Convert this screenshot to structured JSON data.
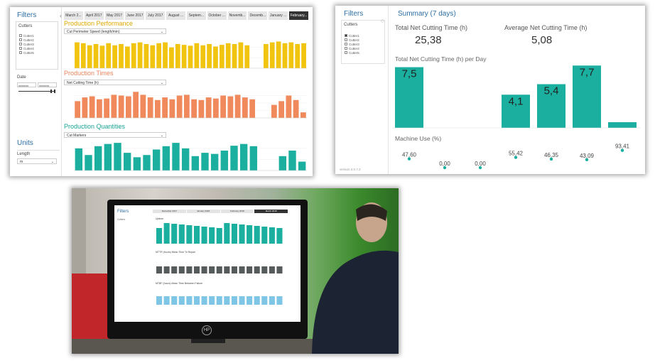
{
  "p1": {
    "sidebar": {
      "title": "Filters",
      "cutters_label": "Cutters",
      "cutters": [
        "Cutter1",
        "Cutter2",
        "Cutter3",
        "Cutter4",
        "Cutter5"
      ],
      "date_label": "Date",
      "date_from": "xx/xx/xx",
      "date_to": "xx/xx/xx",
      "units_title": "Units",
      "length_label": "Length",
      "length_value": "m"
    },
    "tabs": [
      "March 2...",
      "April 2017",
      "May 2017",
      "June 2017",
      "July 2017",
      "August ...",
      "Septem...",
      "October ...",
      "Novemb...",
      "Decemb...",
      "January ...",
      "February..."
    ],
    "active_tab": 11,
    "perf": {
      "title": "Production Performance",
      "dropdown": "Cut Perimeter Speed (length/min)",
      "color": "#f1c40f",
      "values": [
        62,
        60,
        55,
        58,
        54,
        60,
        55,
        58,
        52,
        60,
        62,
        58,
        55,
        60,
        62,
        50,
        58,
        56,
        54,
        60,
        55,
        58,
        52,
        56,
        60,
        58,
        62,
        55,
        0,
        0,
        58,
        62,
        64,
        60,
        62,
        58,
        60
      ]
    },
    "times": {
      "title": "Production Times",
      "dropdown": "Net Cutting Time (h)",
      "color": "#f08a5d",
      "values": [
        45,
        55,
        58,
        50,
        52,
        62,
        60,
        58,
        70,
        62,
        55,
        48,
        55,
        50,
        60,
        62,
        50,
        48,
        55,
        52,
        60,
        58,
        62,
        55,
        50,
        0,
        0,
        35,
        45,
        60,
        48,
        15
      ]
    },
    "quantities": {
      "title": "Production Quantities",
      "dropdown": "Cut Markers",
      "color": "#1aaf9e",
      "values": [
        100,
        70,
        110,
        120,
        125,
        80,
        60,
        70,
        95,
        110,
        125,
        100,
        65,
        80,
        75,
        90,
        112,
        120,
        110,
        0,
        0,
        65,
        90,
        40
      ]
    }
  },
  "p2": {
    "sidebar": {
      "title": "Filters",
      "cutters_label": "Cutters",
      "cutters": [
        "Cutter1",
        "Cutter2",
        "Cutter3",
        "Cutter4",
        "Cutter5"
      ],
      "footer": "version 2.0.7.3"
    },
    "title": "Summary (7 days)",
    "kpi1_label": "Total Net Cutting Time (h)",
    "kpi1_value": "25,38",
    "kpi2_label": "Average Net Cutting Time (h)",
    "kpi2_value": "5,08",
    "chart_title": "Total Net Cutting Time (h) per Day",
    "machine_title": "Machine Use (%)",
    "color": "#1aaf9e",
    "days": [
      {
        "value": 7.5,
        "label": "7,5",
        "use": "47,60"
      },
      {
        "value": 0,
        "label": "",
        "use": "0,00"
      },
      {
        "value": 0,
        "label": "",
        "use": "0,00"
      },
      {
        "value": 4.1,
        "label": "4,1",
        "use": "55,42"
      },
      {
        "value": 5.4,
        "label": "5,4",
        "use": "46,35"
      },
      {
        "value": 7.7,
        "label": "7,7",
        "use": "43,09"
      },
      {
        "value": 0.7,
        "label": "",
        "use": "93,41"
      }
    ]
  },
  "p3": {
    "screen": {
      "filters_title": "Filters",
      "cutters_label": "Cutters",
      "tabs": [
        "December 2017",
        "January 2018",
        "February 2018",
        "March 2018"
      ],
      "uptime_title": "Uptime",
      "mttr_title": "MTTR (hours) Mean Time To Repair",
      "mtbf_title": "MTBF (hours) Mean Time Between Failure",
      "brand": "HP"
    }
  }
}
